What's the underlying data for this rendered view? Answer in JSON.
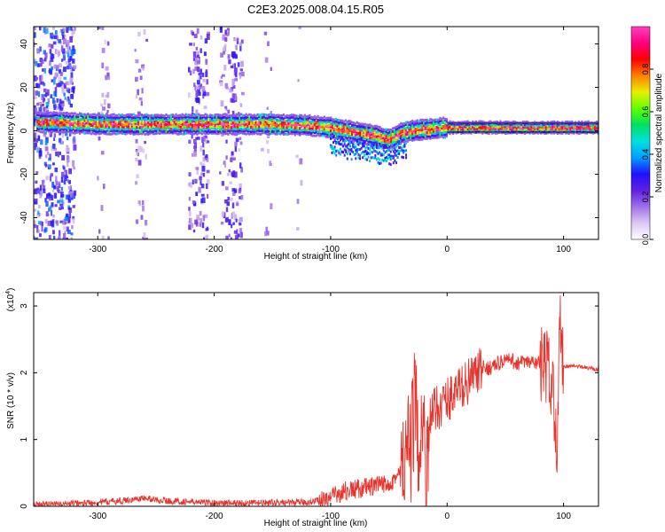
{
  "title": "C2E3.2025.008.04.15.R05",
  "colorbar": {
    "label": "Normalized spectral amplitude",
    "ticks": [
      "0.0",
      "0.2",
      "0.4",
      "0.6",
      "0.8"
    ],
    "tick_values": [
      0.0,
      0.2,
      0.4,
      0.6,
      0.8
    ],
    "range": [
      0,
      1
    ],
    "stops": [
      "#ffffff",
      "#dcc8f5",
      "#a070e8",
      "#6020e0",
      "#2010ff",
      "#00a0ff",
      "#00e0e0",
      "#00e060",
      "#60ff00",
      "#e8f000",
      "#ff8000",
      "#ff0000",
      "#ff0080",
      "#ff40c0"
    ]
  },
  "chart_data": [
    {
      "type": "heatmap",
      "xlabel": "Height of straight line (km)",
      "ylabel": "Frequency (Hz)",
      "xlim": [
        -355,
        130
      ],
      "ylim": [
        -50,
        48
      ],
      "xticks": [
        -300,
        -200,
        -100,
        0,
        100
      ],
      "xtick_labels": [
        "-300",
        "-200",
        "-100",
        "0",
        "100"
      ],
      "yticks": [
        -40,
        -20,
        0,
        20,
        40
      ],
      "ytick_labels": [
        "-40",
        "-20",
        "0",
        "20",
        "40"
      ],
      "ridge": {
        "x": [
          -340,
          -300,
          -250,
          -200,
          -150,
          -120,
          -100,
          -80,
          -60,
          -50,
          -45,
          -40,
          -30,
          -20,
          -10,
          0,
          20,
          50,
          80,
          100,
          130
        ],
        "y": [
          4,
          3,
          3,
          3,
          3,
          2.5,
          1.5,
          -0.5,
          -2.5,
          -4,
          -3,
          -1,
          0,
          0.5,
          1,
          1.5,
          1.5,
          1.5,
          1.5,
          1.5,
          1.5
        ]
      },
      "colors": {
        "ridge_peak": "#ff0000",
        "ridge_mid": "#00e060",
        "ridge_edge": "#2010ff",
        "halo": "#a070e8"
      }
    },
    {
      "type": "line",
      "xlabel": "Height of straight line (km)",
      "ylabel": "SNR (10 * v/v)",
      "scale_label": "(x10",
      "scale_exp": "4",
      "scale_close": ")",
      "xlim": [
        -355,
        130
      ],
      "ylim": [
        0,
        3.2
      ],
      "xticks": [
        -300,
        -200,
        -100,
        0,
        100
      ],
      "xtick_labels": [
        "-300",
        "-200",
        "-100",
        "0",
        "100"
      ],
      "yticks": [
        0,
        1,
        2,
        3
      ],
      "ytick_labels": [
        "0",
        "1",
        "2",
        "3"
      ],
      "series": [
        {
          "color": "#e8342c",
          "x": [
            -355,
            -320,
            -280,
            -260,
            -240,
            -200,
            -160,
            -120,
            -100,
            -90,
            -80,
            -70,
            -60,
            -50,
            -40,
            -35,
            -30,
            -28,
            -25,
            -22,
            -20,
            -18,
            -15,
            -10,
            0,
            10,
            20,
            30,
            40,
            50,
            60,
            70,
            80,
            85,
            90,
            93,
            95,
            97,
            100,
            110,
            120,
            130
          ],
          "y": [
            0.02,
            0.04,
            0.08,
            0.12,
            0.08,
            0.05,
            0.05,
            0.06,
            0.12,
            0.22,
            0.25,
            0.28,
            0.3,
            0.35,
            0.5,
            0.7,
            1.0,
            1.6,
            0.9,
            1.4,
            1.1,
            0.5,
            1.3,
            1.45,
            1.6,
            1.75,
            1.9,
            2.05,
            2.1,
            2.2,
            2.15,
            2.15,
            2.15,
            2.1,
            1.9,
            1.4,
            0.9,
            2.9,
            2.1,
            2.1,
            2.07,
            2.05
          ]
        }
      ]
    }
  ]
}
